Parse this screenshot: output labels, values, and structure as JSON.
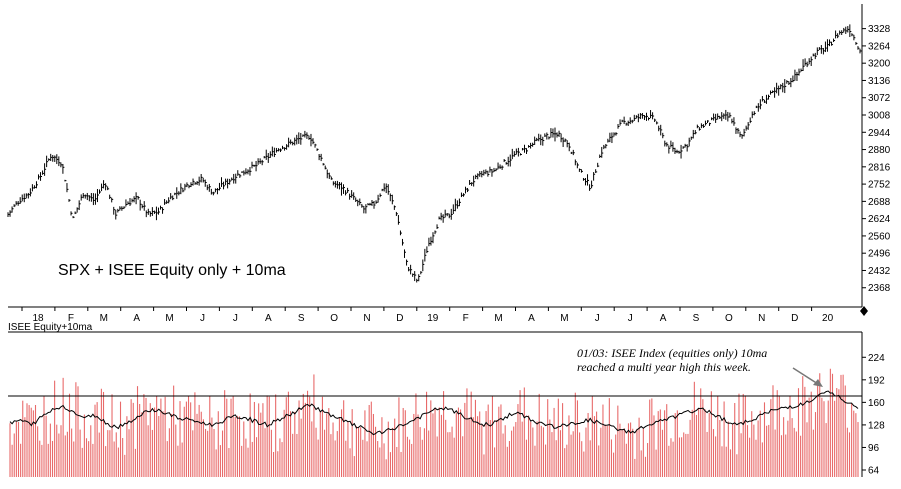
{
  "chart_data": [
    {
      "type": "line",
      "title": "SPX + ISEE Equity only + 10ma",
      "xlabel": "",
      "ylabel": "",
      "ylim": [
        2330,
        3360
      ],
      "y_ticks": [
        3328,
        3264,
        3200,
        3136,
        3072,
        3008,
        2944,
        2880,
        2816,
        2752,
        2688,
        2624,
        2560,
        2496,
        2432,
        2368
      ],
      "x_tick_labels": [
        "18",
        "F",
        "M",
        "A",
        "M",
        "J",
        "J",
        "A",
        "S",
        "O",
        "N",
        "D",
        "19",
        "F",
        "M",
        "A",
        "M",
        "J",
        "J",
        "A",
        "S",
        "O",
        "N",
        "D",
        "20"
      ],
      "series": [
        {
          "values": [
            2640,
            2690,
            2720,
            2780,
            2860,
            2830,
            2620,
            2720,
            2690,
            2760,
            2640,
            2680,
            2700,
            2640,
            2650,
            2700,
            2730,
            2760,
            2770,
            2720,
            2750,
            2780,
            2800,
            2820,
            2850,
            2880,
            2900,
            2920,
            2930,
            2850,
            2760,
            2740,
            2700,
            2660,
            2680,
            2750,
            2650,
            2450,
            2390,
            2530,
            2620,
            2640,
            2700,
            2760,
            2790,
            2800,
            2830,
            2860,
            2880,
            2910,
            2930,
            2940,
            2900,
            2800,
            2740,
            2870,
            2930,
            2980,
            2990,
            3010,
            2990,
            2900,
            2870,
            2900,
            2960,
            2980,
            3000,
            3000,
            2920,
            3010,
            3060,
            3090,
            3120,
            3150,
            3200,
            3240,
            3260,
            3310,
            3330,
            3250
          ]
        },
        {
          "name": "ISEE Equity+10ma",
          "ylim": [
            64,
            240
          ],
          "y_ticks": [
            224,
            192,
            160,
            128,
            96,
            64
          ],
          "reference_line": 169,
          "values": [
            130,
            135,
            128,
            140,
            150,
            155,
            145,
            138,
            142,
            130,
            125,
            132,
            140,
            150,
            148,
            142,
            136,
            135,
            130,
            128,
            135,
            140,
            138,
            132,
            128,
            135,
            142,
            150,
            158,
            148,
            140,
            135,
            128,
            122,
            115,
            118,
            125,
            130,
            138,
            145,
            152,
            150,
            142,
            135,
            128,
            130,
            138,
            145,
            140,
            132,
            128,
            125,
            128,
            132,
            135,
            130,
            125,
            120,
            118,
            125,
            130,
            135,
            140,
            145,
            150,
            148,
            140,
            132,
            128,
            135,
            142,
            148,
            152,
            155,
            158,
            165,
            175,
            170,
            160,
            150
          ]
        }
      ],
      "annotations": [
        "01/03: ISEE Index (equities only) 10ma",
        "reached a multi year high this week."
      ]
    }
  ]
}
